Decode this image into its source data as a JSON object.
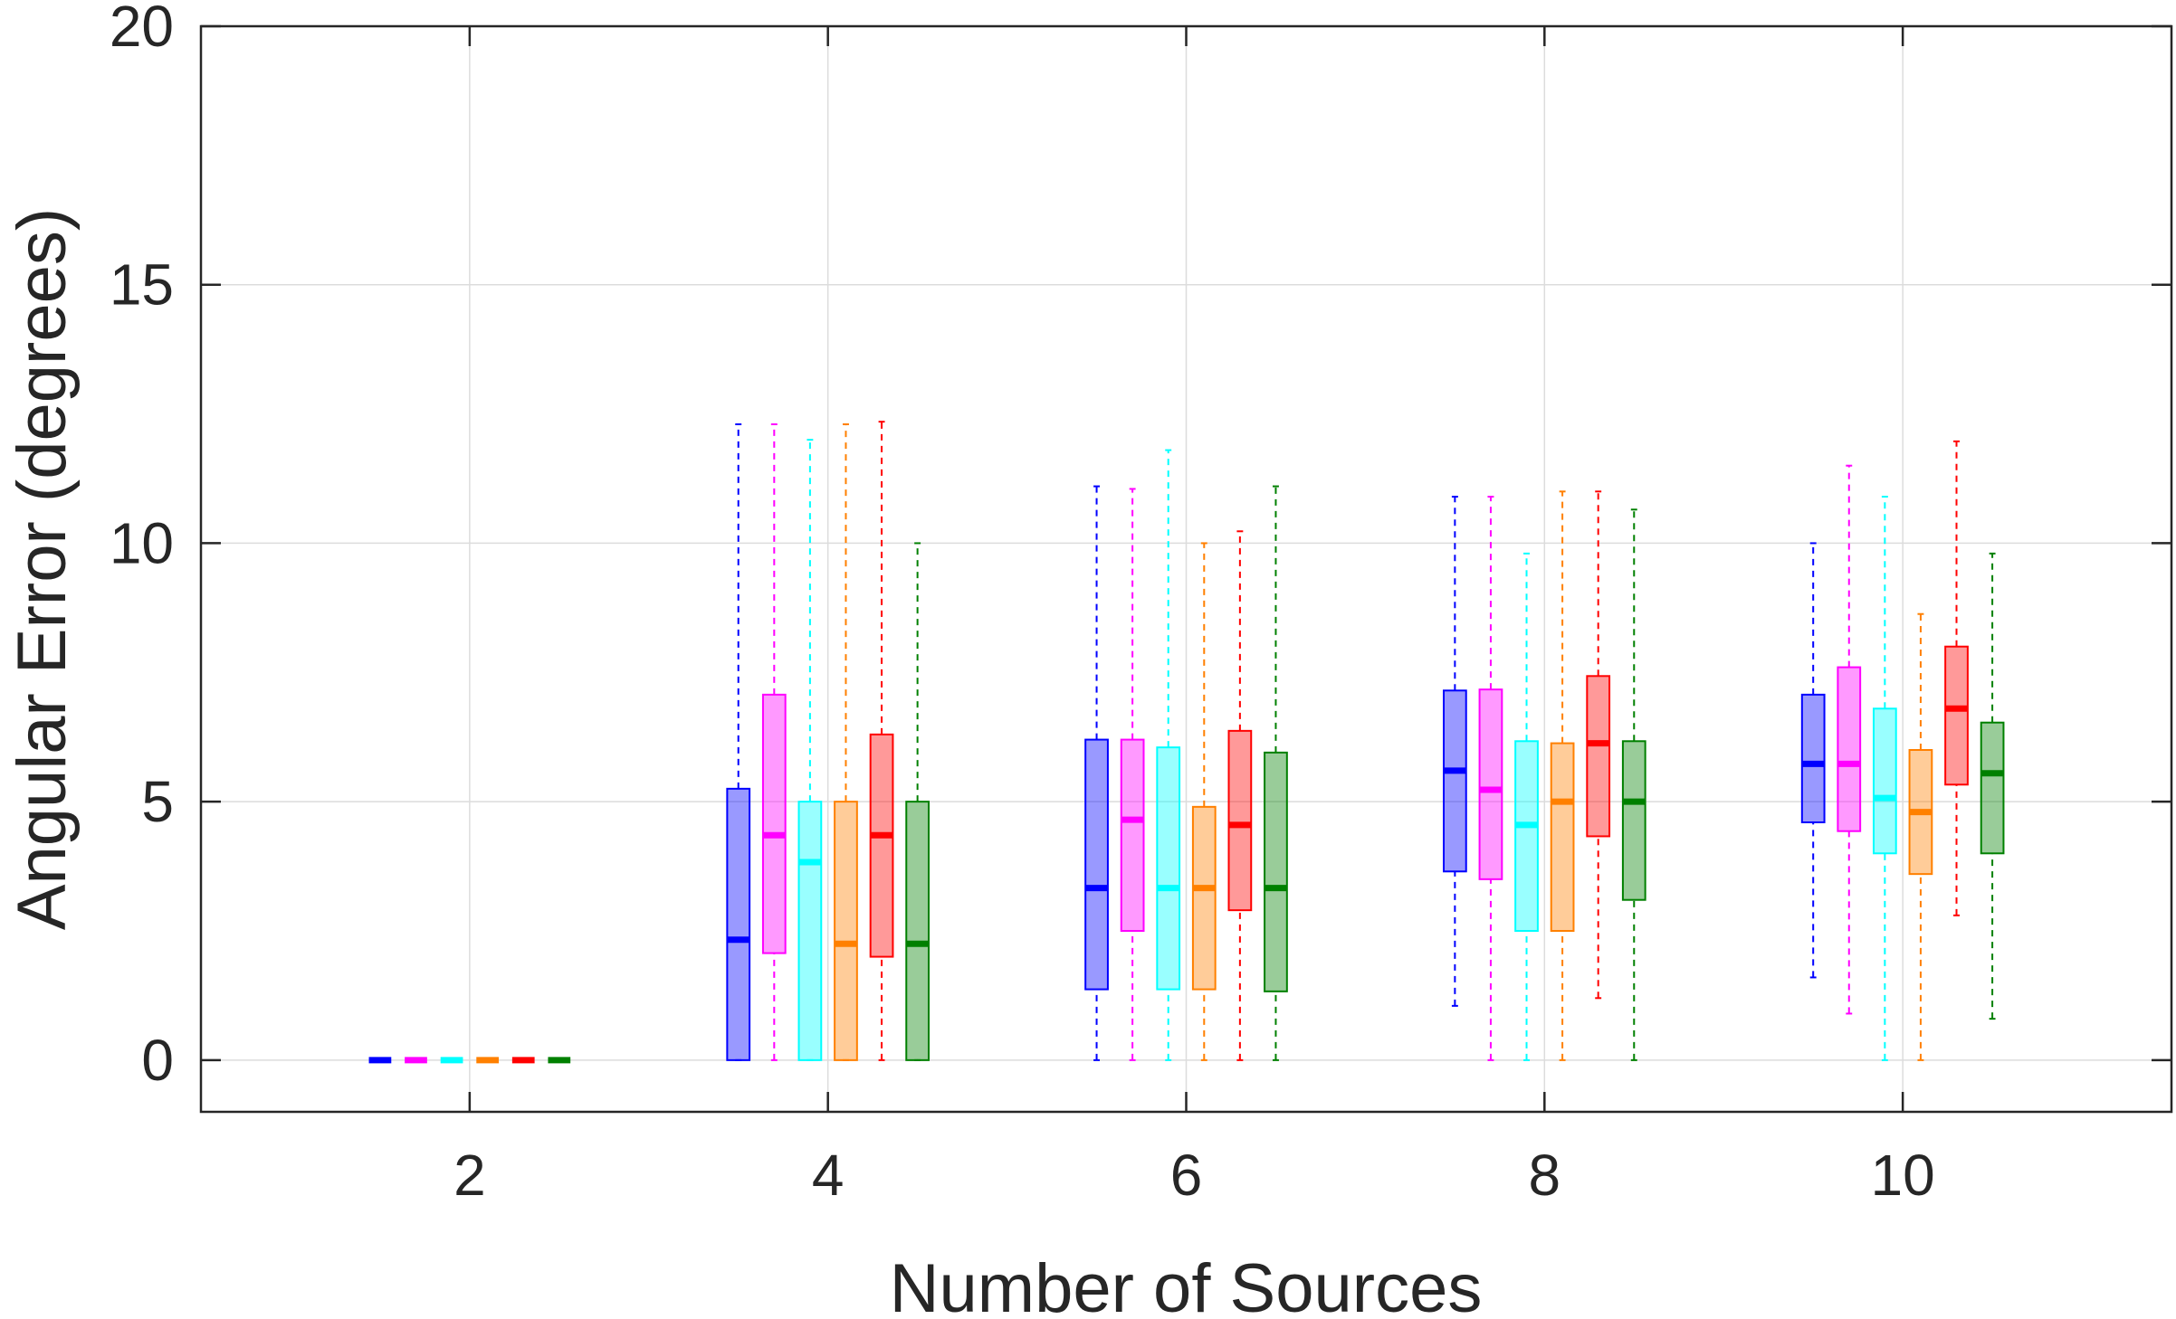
{
  "chart_data": {
    "type": "boxplot",
    "title": "",
    "xlabel": "Number of Sources",
    "ylabel": "Angular Error (degrees)",
    "categories": [
      "2",
      "4",
      "6",
      "8",
      "10"
    ],
    "x_values": [
      2,
      4,
      6,
      8,
      10
    ],
    "xlim": [
      0.5,
      11.5
    ],
    "ylim": [
      -1,
      20
    ],
    "y_ticks": [
      0,
      5,
      10,
      15,
      20
    ],
    "grid": true,
    "series": [
      {
        "color": "#0000ff",
        "boxes": [
          {
            "min": 0,
            "q1": 0,
            "median": 0,
            "q3": 0,
            "max": 0
          },
          {
            "min": 0,
            "q1": 0,
            "median": 2.33,
            "q3": 5.25,
            "max": 12.3
          },
          {
            "min": 0,
            "q1": 1.37,
            "median": 3.33,
            "q3": 6.2,
            "max": 11.1
          },
          {
            "min": 1.05,
            "q1": 3.65,
            "median": 5.6,
            "q3": 7.15,
            "max": 10.9
          },
          {
            "min": 1.6,
            "q1": 4.6,
            "median": 5.73,
            "q3": 7.07,
            "max": 10.0
          }
        ]
      },
      {
        "color": "#ff00ff",
        "boxes": [
          {
            "min": 0,
            "q1": 0,
            "median": 0,
            "q3": 0,
            "max": 0
          },
          {
            "min": 0,
            "q1": 2.07,
            "median": 4.35,
            "q3": 7.07,
            "max": 12.3
          },
          {
            "min": 0,
            "q1": 2.5,
            "median": 4.65,
            "q3": 6.2,
            "max": 11.05
          },
          {
            "min": 0,
            "q1": 3.5,
            "median": 5.23,
            "q3": 7.17,
            "max": 10.9
          },
          {
            "min": 0.9,
            "q1": 4.43,
            "median": 5.73,
            "q3": 7.6,
            "max": 11.5
          }
        ]
      },
      {
        "color": "#00ffff",
        "boxes": [
          {
            "min": 0,
            "q1": 0,
            "median": 0,
            "q3": 0,
            "max": 0
          },
          {
            "min": 0,
            "q1": 0,
            "median": 3.83,
            "q3": 5.0,
            "max": 12.0
          },
          {
            "min": 0,
            "q1": 1.37,
            "median": 3.33,
            "q3": 6.05,
            "max": 11.8
          },
          {
            "min": 0,
            "q1": 2.5,
            "median": 4.55,
            "q3": 6.17,
            "max": 9.8
          },
          {
            "min": 0,
            "q1": 4.0,
            "median": 5.07,
            "q3": 6.8,
            "max": 10.9
          }
        ]
      },
      {
        "color": "#ff8000",
        "boxes": [
          {
            "min": 0,
            "q1": 0,
            "median": 0,
            "q3": 0,
            "max": 0
          },
          {
            "min": 0,
            "q1": 0,
            "median": 2.25,
            "q3": 5.0,
            "max": 12.3
          },
          {
            "min": 0,
            "q1": 1.37,
            "median": 3.33,
            "q3": 4.9,
            "max": 10.0
          },
          {
            "min": 0,
            "q1": 2.5,
            "median": 5.0,
            "q3": 6.13,
            "max": 11.0
          },
          {
            "min": 0,
            "q1": 3.6,
            "median": 4.8,
            "q3": 6.0,
            "max": 8.63
          }
        ]
      },
      {
        "color": "#ff0000",
        "boxes": [
          {
            "min": 0,
            "q1": 0,
            "median": 0,
            "q3": 0,
            "max": 0
          },
          {
            "min": 0,
            "q1": 2.0,
            "median": 4.35,
            "q3": 6.3,
            "max": 12.35
          },
          {
            "min": 0,
            "q1": 2.9,
            "median": 4.55,
            "q3": 6.37,
            "max": 10.23
          },
          {
            "min": 1.2,
            "q1": 4.33,
            "median": 6.13,
            "q3": 7.43,
            "max": 11.0
          },
          {
            "min": 2.8,
            "q1": 5.33,
            "median": 6.8,
            "q3": 8.0,
            "max": 11.97
          }
        ]
      },
      {
        "color": "#008000",
        "boxes": [
          {
            "min": 0,
            "q1": 0,
            "median": 0,
            "q3": 0,
            "max": 0
          },
          {
            "min": 0,
            "q1": 0,
            "median": 2.25,
            "q3": 5.0,
            "max": 10.0
          },
          {
            "min": 0,
            "q1": 1.33,
            "median": 3.33,
            "q3": 5.95,
            "max": 11.1
          },
          {
            "min": 0,
            "q1": 3.1,
            "median": 5.0,
            "q3": 6.17,
            "max": 10.65
          },
          {
            "min": 0.8,
            "q1": 4.0,
            "median": 5.55,
            "q3": 6.53,
            "max": 9.8
          }
        ]
      }
    ]
  }
}
